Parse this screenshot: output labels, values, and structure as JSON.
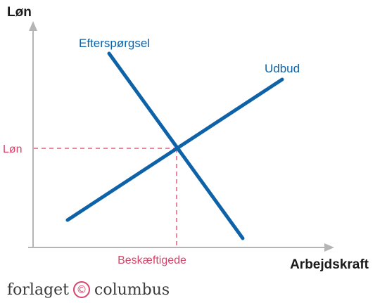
{
  "diagram": {
    "y_axis_title": "Løn",
    "x_axis_title": "Arbejdskraft",
    "demand_label": "Efterspørgsel",
    "supply_label": "Udbud",
    "equilibrium_wage_label": "Løn",
    "equilibrium_employment_label": "Beskæftigede"
  },
  "colors": {
    "curves": "#0d62a8",
    "curve_labels": "#0d62a8",
    "equilibrium_guides": "#e8879c",
    "equilibrium_labels": "#d8436b",
    "axes": "#b5b5b5"
  },
  "publisher": {
    "left_text": "forlaget",
    "icon": "copyright-icon",
    "right_text": "columbus"
  }
}
